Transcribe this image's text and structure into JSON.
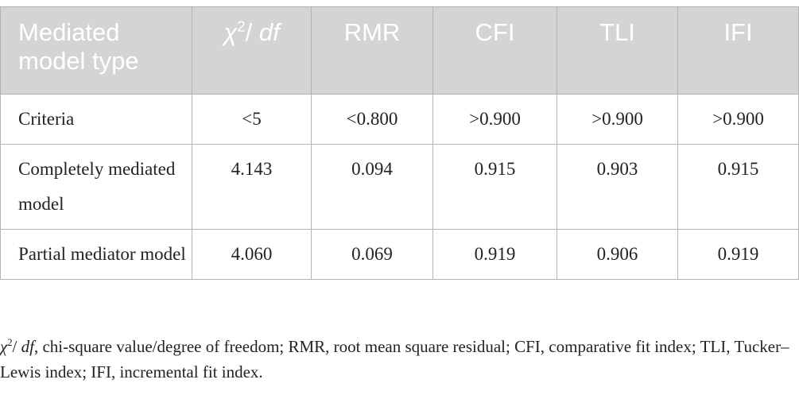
{
  "table": {
    "header": [
      "Mediated model type",
      "RMR",
      "CFI",
      "TLI",
      "IFI"
    ],
    "chi_header": [
      "χ",
      "2",
      "/ ",
      "df"
    ],
    "rows": [
      [
        "Criteria",
        "<5",
        "<0.800",
        ">0.900",
        ">0.900",
        ">0.900"
      ],
      [
        "Completely mediated model",
        "4.143",
        "0.094",
        "0.915",
        "0.903",
        "0.915"
      ],
      [
        "Partial mediator model",
        "4.060",
        "0.069",
        "0.919",
        "0.906",
        "0.919"
      ]
    ]
  },
  "footnote": [
    "χ",
    "2",
    "/ ",
    "df",
    ", chi-square value/degree of freedom; RMR, root mean square residual; CFI, comparative fit index; TLI, Tucker–Lewis index; IFI, incremental fit index."
  ]
}
